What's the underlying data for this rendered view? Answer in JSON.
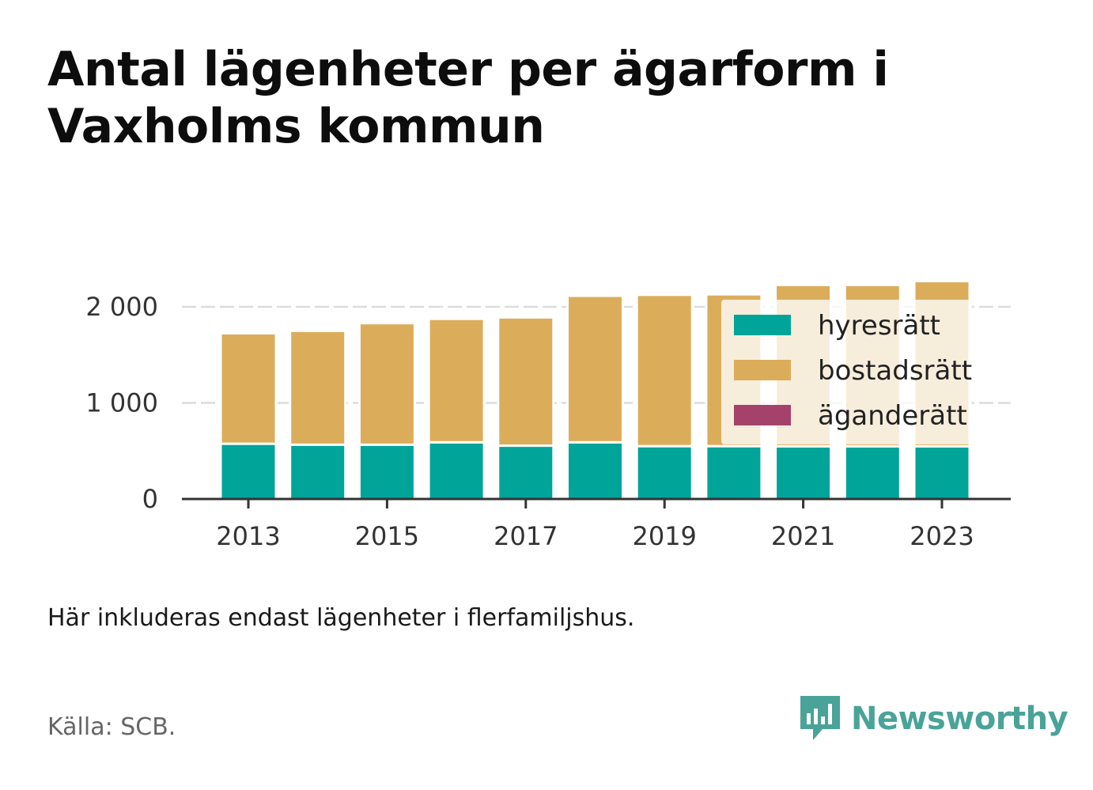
{
  "title": "Antal lägenheter per ägarform i Vaxholms kommun",
  "note": "Här inkluderas endast lägenheter i flerfamiljshus.",
  "source": "Källa: SCB.",
  "brand": {
    "name": "Newsworthy",
    "icon": "newsworthy-logo-icon",
    "color": "#4aa398"
  },
  "chart_data": {
    "type": "bar",
    "stacked": true,
    "categories": [
      2013,
      2014,
      2015,
      2016,
      2017,
      2018,
      2019,
      2020,
      2021,
      2022,
      2023
    ],
    "x_tick_labels": [
      "2013",
      "2015",
      "2017",
      "2019",
      "2021",
      "2023"
    ],
    "y_tick_values": [
      0,
      1000,
      2000
    ],
    "y_tick_labels": [
      "0",
      "1 000",
      "2 000"
    ],
    "ylim": [
      0,
      2300
    ],
    "grid": true,
    "legend_position": "top-right",
    "series": [
      {
        "name": "hyresrätt",
        "color": "#00a499",
        "values": [
          575,
          565,
          565,
          590,
          555,
          590,
          550,
          550,
          548,
          548,
          548
        ]
      },
      {
        "name": "bostadsrätt",
        "color": "#dbad5b",
        "values": [
          1150,
          1185,
          1265,
          1285,
          1335,
          1525,
          1575,
          1580,
          1680,
          1680,
          1720
        ]
      },
      {
        "name": "äganderätt",
        "color": "#a5426b",
        "values": [
          0,
          0,
          0,
          0,
          0,
          0,
          0,
          0,
          0,
          0,
          0
        ]
      }
    ]
  }
}
